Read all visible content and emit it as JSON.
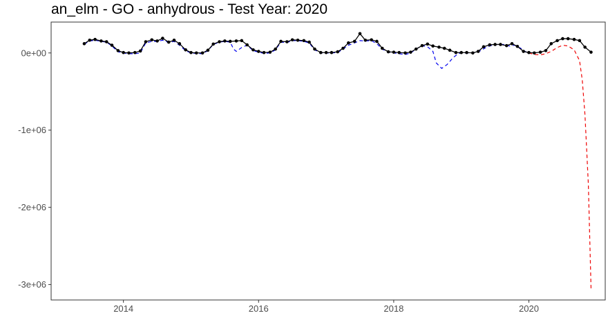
{
  "chart_data": {
    "type": "line",
    "title": "an_elm - GO - anhydrous - Test Year: 2020",
    "xlabel": "",
    "ylabel": "",
    "xlim": [
      2012.93,
      2021.13
    ],
    "ylim": [
      -3200000,
      400000
    ],
    "x_ticks": [
      2014,
      2016,
      2018,
      2020
    ],
    "x_tick_labels": [
      "2014",
      "2016",
      "2018",
      "2020"
    ],
    "y_ticks": [
      0,
      -1000000,
      -2000000,
      -3000000
    ],
    "y_tick_labels": [
      "0e+00",
      "-1e+06",
      "-2e+06",
      "-3e+06"
    ],
    "grid": false,
    "legend": "none",
    "series": [
      {
        "style": "solid-line-with-points",
        "color": "#000000",
        "x": [
          2013.42,
          2013.5,
          2013.58,
          2013.67,
          2013.75,
          2013.83,
          2013.92,
          2014.0,
          2014.08,
          2014.17,
          2014.25,
          2014.33,
          2014.42,
          2014.5,
          2014.58,
          2014.67,
          2014.75,
          2014.83,
          2014.92,
          2015.0,
          2015.08,
          2015.17,
          2015.25,
          2015.33,
          2015.42,
          2015.5,
          2015.58,
          2015.67,
          2015.75,
          2015.83,
          2015.92,
          2016.0,
          2016.08,
          2016.17,
          2016.25,
          2016.33,
          2016.42,
          2016.5,
          2016.58,
          2016.67,
          2016.75,
          2016.83,
          2016.92,
          2017.0,
          2017.08,
          2017.17,
          2017.25,
          2017.33,
          2017.42,
          2017.5,
          2017.58,
          2017.67,
          2017.75,
          2017.83,
          2017.92,
          2018.0,
          2018.08,
          2018.17,
          2018.25,
          2018.33,
          2018.42,
          2018.5,
          2018.58,
          2018.67,
          2018.75,
          2018.83,
          2018.92,
          2019.0,
          2019.08,
          2019.17,
          2019.25,
          2019.33,
          2019.42,
          2019.5,
          2019.58,
          2019.67,
          2019.75,
          2019.83,
          2019.92,
          2020.0,
          2020.08,
          2020.17,
          2020.25,
          2020.33,
          2020.42,
          2020.5,
          2020.58,
          2020.67,
          2020.75,
          2020.83,
          2020.92
        ],
        "y": [
          120000,
          165000,
          175000,
          155000,
          145000,
          100000,
          30000,
          5000,
          0,
          5000,
          25000,
          145000,
          170000,
          155000,
          190000,
          140000,
          165000,
          120000,
          40000,
          5000,
          0,
          0,
          35000,
          115000,
          145000,
          155000,
          150000,
          155000,
          160000,
          105000,
          40000,
          20000,
          5000,
          10000,
          50000,
          150000,
          145000,
          170000,
          165000,
          160000,
          140000,
          50000,
          5000,
          5000,
          5000,
          15000,
          60000,
          130000,
          150000,
          250000,
          165000,
          170000,
          150000,
          60000,
          15000,
          10000,
          5000,
          0,
          10000,
          50000,
          95000,
          115000,
          90000,
          75000,
          60000,
          35000,
          5000,
          5000,
          5000,
          0,
          20000,
          80000,
          105000,
          110000,
          110000,
          95000,
          120000,
          85000,
          20000,
          5000,
          0,
          10000,
          30000,
          120000,
          160000,
          185000,
          185000,
          175000,
          160000,
          75000,
          10000
        ]
      },
      {
        "style": "dashed-line",
        "color": "#0000ee",
        "x": [
          2013.42,
          2013.5,
          2013.58,
          2013.67,
          2013.75,
          2013.83,
          2013.92,
          2014.0,
          2014.08,
          2014.17,
          2014.25,
          2014.33,
          2014.42,
          2014.5,
          2014.58,
          2014.67,
          2014.75,
          2014.83,
          2014.92,
          2015.0,
          2015.08,
          2015.17,
          2015.25,
          2015.33,
          2015.42,
          2015.5,
          2015.58,
          2015.63,
          2015.67,
          2015.75,
          2015.83,
          2015.92,
          2016.0,
          2016.08,
          2016.17,
          2016.25,
          2016.33,
          2016.42,
          2016.5,
          2016.58,
          2016.67,
          2016.75,
          2016.83,
          2016.92,
          2017.0,
          2017.08,
          2017.17,
          2017.25,
          2017.33,
          2017.42,
          2017.5,
          2017.58,
          2017.67,
          2017.75,
          2017.83,
          2017.92,
          2018.0,
          2018.08,
          2018.17,
          2018.25,
          2018.33,
          2018.42,
          2018.5,
          2018.58,
          2018.63,
          2018.71,
          2018.79,
          2018.88,
          2018.96,
          2019.04,
          2019.13,
          2019.21,
          2019.29,
          2019.38,
          2019.46,
          2019.54,
          2019.63,
          2019.71,
          2019.79,
          2019.88,
          2019.96,
          2020.0
        ],
        "y": [
          115000,
          155000,
          165000,
          150000,
          140000,
          90000,
          15000,
          0,
          -10000,
          -10000,
          0,
          130000,
          150000,
          150000,
          165000,
          135000,
          150000,
          100000,
          30000,
          0,
          -5000,
          -10000,
          30000,
          110000,
          140000,
          150000,
          140000,
          50000,
          20000,
          70000,
          100000,
          30000,
          10000,
          -5000,
          0,
          40000,
          140000,
          135000,
          160000,
          160000,
          150000,
          130000,
          40000,
          0,
          0,
          0,
          5000,
          50000,
          100000,
          130000,
          160000,
          155000,
          160000,
          120000,
          50000,
          10000,
          0,
          -10000,
          -20000,
          0,
          50000,
          95000,
          80000,
          20000,
          -130000,
          -200000,
          -150000,
          -60000,
          -5000,
          0,
          0,
          5000,
          30000,
          80000,
          100000,
          110000,
          110000,
          90000,
          100000,
          60000,
          10000,
          0
        ]
      },
      {
        "style": "dashed-line",
        "color": "#ee0000",
        "x": [
          2020.0,
          2020.08,
          2020.17,
          2020.25,
          2020.33,
          2020.42,
          2020.5,
          2020.58,
          2020.67,
          2020.75,
          2020.79,
          2020.83,
          2020.88,
          2020.92
        ],
        "y": [
          0,
          -20000,
          -25000,
          -10000,
          20000,
          70000,
          100000,
          90000,
          40000,
          -100000,
          -350000,
          -800000,
          -1700000,
          -3050000
        ]
      }
    ]
  }
}
